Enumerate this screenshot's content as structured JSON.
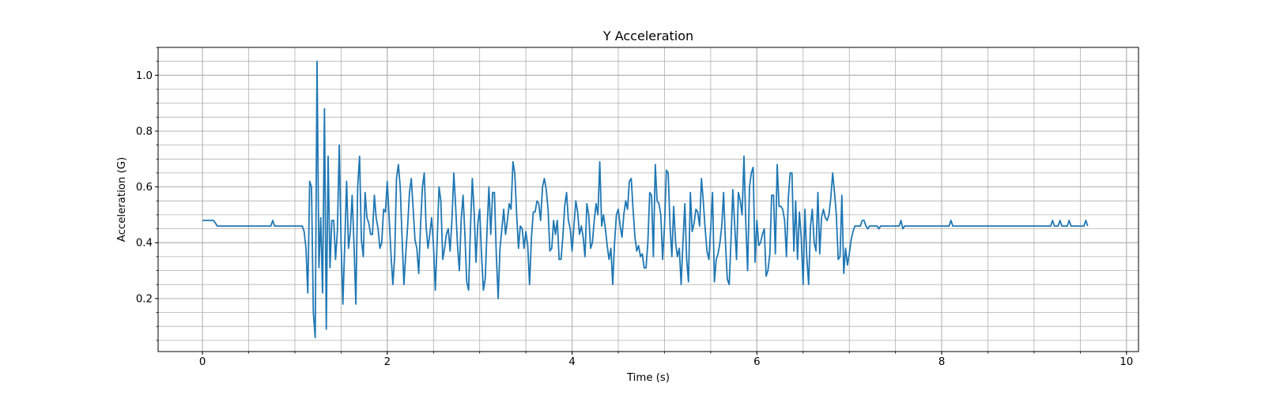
{
  "chart_data": {
    "type": "line",
    "title": "Y Acceleration",
    "xlabel": "Time (s)",
    "ylabel": "Acceleration (G)",
    "xlim": [
      -0.48,
      10.13
    ],
    "ylim": [
      0.01,
      1.1
    ],
    "x_ticks": [
      0,
      2,
      4,
      6,
      8,
      10
    ],
    "x_tick_labels": [
      "0",
      "2",
      "4",
      "6",
      "8",
      "10"
    ],
    "x_minor_step": 0.5,
    "y_ticks": [
      0.2,
      0.4,
      0.6,
      0.8,
      1.0
    ],
    "y_tick_labels": [
      "0.2",
      "0.4",
      "0.6",
      "0.8",
      "1.0"
    ],
    "y_minor_step": 0.05,
    "grid": true,
    "grid_minor": true,
    "legend": "none",
    "series": [
      {
        "color": "#1f77b4",
        "sample_interval": 0.02,
        "values": [
          0.48,
          0.48,
          0.48,
          0.48,
          0.48,
          0.48,
          0.48,
          0.47,
          0.46,
          0.46,
          0.46,
          0.46,
          0.46,
          0.46,
          0.46,
          0.46,
          0.46,
          0.46,
          0.46,
          0.46,
          0.46,
          0.46,
          0.46,
          0.46,
          0.46,
          0.46,
          0.46,
          0.46,
          0.46,
          0.46,
          0.46,
          0.46,
          0.46,
          0.46,
          0.46,
          0.46,
          0.46,
          0.46,
          0.48,
          0.46,
          0.46,
          0.46,
          0.46,
          0.46,
          0.46,
          0.46,
          0.46,
          0.46,
          0.46,
          0.46,
          0.46,
          0.46,
          0.46,
          0.46,
          0.46,
          0.44,
          0.38,
          0.22,
          0.62,
          0.6,
          0.15,
          0.06,
          1.05,
          0.31,
          0.49,
          0.22,
          0.88,
          0.09,
          0.71,
          0.31,
          0.48,
          0.48,
          0.34,
          0.44,
          0.75,
          0.4,
          0.18,
          0.4,
          0.62,
          0.38,
          0.44,
          0.57,
          0.39,
          0.18,
          0.6,
          0.71,
          0.41,
          0.35,
          0.58,
          0.49,
          0.47,
          0.43,
          0.43,
          0.57,
          0.49,
          0.45,
          0.38,
          0.4,
          0.52,
          0.51,
          0.62,
          0.49,
          0.36,
          0.25,
          0.35,
          0.63,
          0.68,
          0.6,
          0.42,
          0.25,
          0.36,
          0.46,
          0.58,
          0.63,
          0.52,
          0.41,
          0.38,
          0.29,
          0.46,
          0.6,
          0.65,
          0.46,
          0.38,
          0.43,
          0.49,
          0.39,
          0.23,
          0.41,
          0.6,
          0.55,
          0.34,
          0.38,
          0.43,
          0.45,
          0.37,
          0.48,
          0.65,
          0.53,
          0.39,
          0.3,
          0.48,
          0.57,
          0.43,
          0.26,
          0.23,
          0.45,
          0.63,
          0.51,
          0.33,
          0.47,
          0.52,
          0.36,
          0.23,
          0.27,
          0.45,
          0.6,
          0.43,
          0.58,
          0.58,
          0.36,
          0.2,
          0.38,
          0.45,
          0.52,
          0.43,
          0.48,
          0.54,
          0.52,
          0.69,
          0.65,
          0.5,
          0.38,
          0.46,
          0.45,
          0.38,
          0.44,
          0.39,
          0.25,
          0.42,
          0.51,
          0.51,
          0.55,
          0.54,
          0.48,
          0.6,
          0.63,
          0.59,
          0.52,
          0.37,
          0.38,
          0.48,
          0.43,
          0.48,
          0.34,
          0.34,
          0.42,
          0.53,
          0.58,
          0.48,
          0.45,
          0.37,
          0.46,
          0.55,
          0.51,
          0.43,
          0.46,
          0.42,
          0.35,
          0.54,
          0.5,
          0.38,
          0.4,
          0.48,
          0.54,
          0.5,
          0.69,
          0.46,
          0.5,
          0.45,
          0.39,
          0.34,
          0.38,
          0.25,
          0.4,
          0.5,
          0.52,
          0.46,
          0.42,
          0.5,
          0.55,
          0.52,
          0.62,
          0.63,
          0.52,
          0.42,
          0.37,
          0.39,
          0.35,
          0.36,
          0.31,
          0.31,
          0.4,
          0.58,
          0.57,
          0.35,
          0.68,
          0.55,
          0.54,
          0.5,
          0.34,
          0.46,
          0.66,
          0.65,
          0.46,
          0.35,
          0.53,
          0.4,
          0.35,
          0.38,
          0.25,
          0.4,
          0.54,
          0.34,
          0.26,
          0.58,
          0.44,
          0.47,
          0.52,
          0.51,
          0.46,
          0.63,
          0.55,
          0.45,
          0.37,
          0.34,
          0.45,
          0.58,
          0.26,
          0.34,
          0.36,
          0.4,
          0.46,
          0.58,
          0.4,
          0.27,
          0.25,
          0.41,
          0.59,
          0.46,
          0.34,
          0.58,
          0.55,
          0.5,
          0.71,
          0.47,
          0.3,
          0.6,
          0.65,
          0.67,
          0.33,
          0.48,
          0.39,
          0.4,
          0.43,
          0.45,
          0.28,
          0.3,
          0.36,
          0.57,
          0.57,
          0.36,
          0.68,
          0.53,
          0.53,
          0.52,
          0.48,
          0.35,
          0.56,
          0.65,
          0.65,
          0.37,
          0.55,
          0.34,
          0.51,
          0.42,
          0.25,
          0.52,
          0.35,
          0.25,
          0.46,
          0.52,
          0.4,
          0.37,
          0.58,
          0.36,
          0.49,
          0.52,
          0.49,
          0.48,
          0.5,
          0.56,
          0.65,
          0.58,
          0.5,
          0.34,
          0.35,
          0.57,
          0.29,
          0.38,
          0.32,
          0.36,
          0.41,
          0.44,
          0.46,
          0.46,
          0.46,
          0.46,
          0.48,
          0.48,
          0.46,
          0.45,
          0.46,
          0.46,
          0.46,
          0.46,
          0.46,
          0.45,
          0.46,
          0.46,
          0.46,
          0.46,
          0.46,
          0.46,
          0.46,
          0.46,
          0.46,
          0.46,
          0.46,
          0.48,
          0.45,
          0.46,
          0.46,
          0.46,
          0.46,
          0.46,
          0.46,
          0.46,
          0.46,
          0.46,
          0.46,
          0.46,
          0.46,
          0.46,
          0.46,
          0.46,
          0.46,
          0.46,
          0.46,
          0.46,
          0.46,
          0.46,
          0.46,
          0.46,
          0.46,
          0.46,
          0.48,
          0.46,
          0.46,
          0.46,
          0.46,
          0.46,
          0.46,
          0.46,
          0.46,
          0.46,
          0.46,
          0.46,
          0.46,
          0.46,
          0.46,
          0.46,
          0.46,
          0.46,
          0.46,
          0.46,
          0.46,
          0.46,
          0.46,
          0.46,
          0.46,
          0.46,
          0.46,
          0.46,
          0.46,
          0.46,
          0.46,
          0.46,
          0.46,
          0.46,
          0.46,
          0.46,
          0.46,
          0.46,
          0.46,
          0.46,
          0.46,
          0.46,
          0.46,
          0.46,
          0.46,
          0.46,
          0.46,
          0.46,
          0.46,
          0.46,
          0.46,
          0.46,
          0.46,
          0.46,
          0.46,
          0.48,
          0.46,
          0.46,
          0.46,
          0.48,
          0.46,
          0.46,
          0.46,
          0.46,
          0.48,
          0.46,
          0.46,
          0.46,
          0.46,
          0.46,
          0.46,
          0.46,
          0.46,
          0.48,
          0.46
        ]
      }
    ]
  }
}
